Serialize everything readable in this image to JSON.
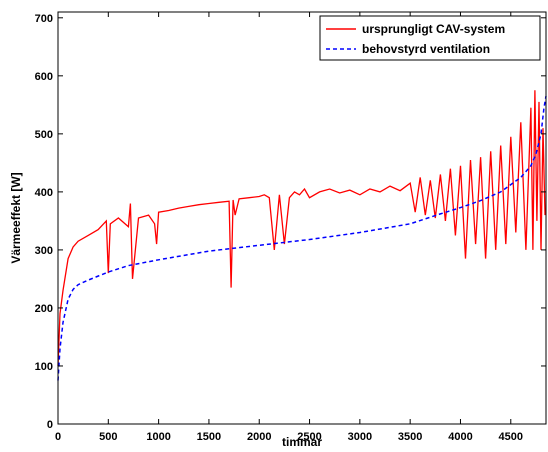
{
  "chart_data": {
    "type": "line",
    "title": "",
    "xlabel": "timmar",
    "ylabel": "Värmeeffekt [W]",
    "xlim": [
      0,
      4850
    ],
    "ylim": [
      0,
      710
    ],
    "x_ticks": [
      0,
      500,
      1000,
      1500,
      2000,
      2500,
      3000,
      3500,
      4000,
      4500
    ],
    "y_ticks": [
      0,
      100,
      200,
      300,
      400,
      500,
      600,
      700
    ],
    "grid": false,
    "legend_position": "top-right",
    "series": [
      {
        "name": "ursprungligt CAV-system",
        "color": "#ff0000",
        "style": "solid",
        "x": [
          0,
          20,
          50,
          100,
          150,
          200,
          300,
          400,
          480,
          500,
          520,
          600,
          700,
          720,
          740,
          800,
          900,
          960,
          980,
          1000,
          1100,
          1200,
          1300,
          1400,
          1500,
          1600,
          1700,
          1720,
          1740,
          1760,
          1800,
          1900,
          2000,
          2050,
          2100,
          2150,
          2200,
          2250,
          2300,
          2350,
          2400,
          2450,
          2500,
          2600,
          2700,
          2800,
          2900,
          3000,
          3100,
          3200,
          3300,
          3400,
          3500,
          3550,
          3600,
          3650,
          3700,
          3750,
          3800,
          3850,
          3900,
          3950,
          4000,
          4050,
          4100,
          4150,
          4200,
          4250,
          4300,
          4350,
          4400,
          4450,
          4500,
          4550,
          4600,
          4650,
          4700,
          4720,
          4740,
          4760,
          4780,
          4800,
          4820,
          4840
        ],
        "y": [
          100,
          190,
          230,
          285,
          305,
          315,
          325,
          335,
          350,
          260,
          345,
          355,
          340,
          380,
          250,
          355,
          360,
          345,
          310,
          365,
          368,
          372,
          375,
          378,
          380,
          382,
          384,
          235,
          386,
          360,
          388,
          390,
          392,
          395,
          390,
          300,
          395,
          310,
          390,
          400,
          395,
          405,
          390,
          400,
          405,
          398,
          403,
          395,
          405,
          400,
          410,
          402,
          415,
          365,
          425,
          360,
          420,
          355,
          430,
          350,
          440,
          325,
          445,
          285,
          455,
          310,
          460,
          285,
          470,
          300,
          480,
          310,
          495,
          330,
          520,
          300,
          545,
          300,
          575,
          350,
          555,
          300,
          510,
          360
        ]
      },
      {
        "name": "behovstyrd ventilation",
        "color": "#0000ff",
        "style": "dashed",
        "x": [
          0,
          20,
          50,
          100,
          150,
          200,
          300,
          500,
          700,
          1000,
          1500,
          2000,
          2500,
          3000,
          3500,
          3800,
          4000,
          4200,
          4400,
          4600,
          4700,
          4750,
          4800,
          4830,
          4850
        ],
        "y": [
          75,
          130,
          175,
          215,
          232,
          240,
          248,
          262,
          273,
          283,
          298,
          308,
          318,
          330,
          345,
          362,
          373,
          385,
          400,
          425,
          445,
          465,
          500,
          545,
          565
        ]
      }
    ]
  }
}
